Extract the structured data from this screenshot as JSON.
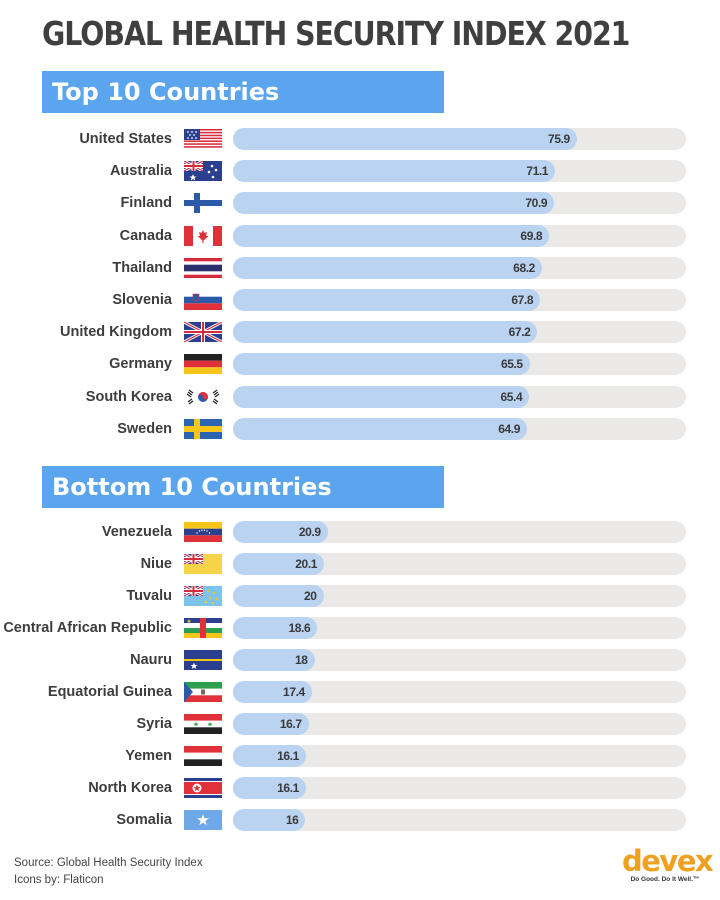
{
  "title": "GLOBAL HEALTH SECURITY INDEX 2021",
  "sections": {
    "top": {
      "label": "Top 10 Countries"
    },
    "bottom": {
      "label": "Bottom 10 Countries"
    }
  },
  "footer": {
    "source": "Source: Global Health Security Index",
    "icons": "Icons by: Flaticon"
  },
  "logo": {
    "word": "devex",
    "tagline": "Do Good. Do It Well.™"
  },
  "colors": {
    "bar": "#b9d3f1",
    "track": "#ebe8e8",
    "header": "#5aa5ee",
    "logo": "#f0a020"
  },
  "chart_data": [
    {
      "type": "bar",
      "title": "Top 10 Countries",
      "xlim": [
        0,
        100
      ],
      "categories": [
        "United States",
        "Australia",
        "Finland",
        "Canada",
        "Thailand",
        "Slovenia",
        "United Kingdom",
        "Germany",
        "South Korea",
        "Sweden"
      ],
      "values": [
        75.9,
        71.1,
        70.9,
        69.8,
        68.2,
        67.8,
        67.2,
        65.5,
        65.4,
        64.9
      ],
      "flags": [
        "united-states-flag-icon",
        "australia-flag-icon",
        "finland-flag-icon",
        "canada-flag-icon",
        "thailand-flag-icon",
        "slovenia-flag-icon",
        "united-kingdom-flag-icon",
        "germany-flag-icon",
        "south-korea-flag-icon",
        "sweden-flag-icon"
      ]
    },
    {
      "type": "bar",
      "title": "Bottom 10 Countries",
      "xlim": [
        0,
        100
      ],
      "categories": [
        "Venezuela",
        "Niue",
        "Tuvalu",
        "Central African Republic",
        "Nauru",
        "Equatorial Guinea",
        "Syria",
        "Yemen",
        "North Korea",
        "Somalia"
      ],
      "values": [
        20.9,
        20.1,
        20,
        18.6,
        18,
        17.4,
        16.7,
        16.1,
        16.1,
        16
      ],
      "flags": [
        "venezuela-flag-icon",
        "niue-flag-icon",
        "tuvalu-flag-icon",
        "central-african-republic-flag-icon",
        "nauru-flag-icon",
        "equatorial-guinea-flag-icon",
        "syria-flag-icon",
        "yemen-flag-icon",
        "north-korea-flag-icon",
        "somalia-flag-icon"
      ]
    }
  ]
}
